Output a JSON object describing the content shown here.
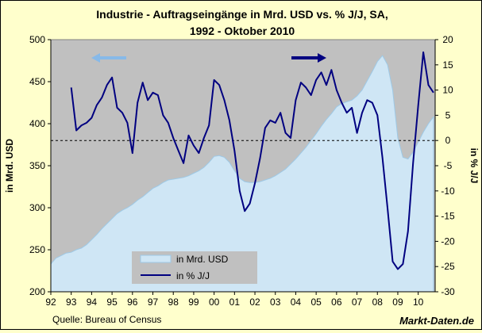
{
  "chart_data": {
    "type": "area",
    "title_line1": "Industrie - Auftragseingänge in Mrd. USD vs. % J/J, SA,",
    "title_line2": "1992 - Oktober 2010",
    "ylabel_left": "in Mrd. USD",
    "ylabel_right": "in % J/J",
    "x_tick_labels": [
      "92",
      "93",
      "94",
      "95",
      "96",
      "97",
      "98",
      "99",
      "00",
      "01",
      "02",
      "03",
      "04",
      "05",
      "06",
      "07",
      "08",
      "09",
      "10"
    ],
    "x_range": [
      1992.0,
      2010.83
    ],
    "ylim_left": [
      200,
      500
    ],
    "yticks_left": [
      200,
      250,
      300,
      350,
      400,
      450,
      500
    ],
    "ylim_right": [
      -30,
      20
    ],
    "yticks_right": [
      -30,
      -25,
      -20,
      -15,
      -10,
      -5,
      0,
      5,
      10,
      15,
      20
    ],
    "grid": false,
    "zero_line_right": 0,
    "legend_position": "bottom-left",
    "source": "Quelle: Bureau of Census",
    "brand": "Markt-Daten.de",
    "colors": {
      "background": "#ffffcc",
      "plot_background": "#c0c0c0",
      "area_fill": "#cfe6f5",
      "area_line": "#9ec9e6",
      "line": "#000080",
      "left_arrow": "#87b9e8",
      "right_arrow": "#000080"
    },
    "series": [
      {
        "name": "in Mrd. USD",
        "axis": "left",
        "kind": "area",
        "x": [
          1992.0,
          1992.25,
          1992.5,
          1992.75,
          1993.0,
          1993.25,
          1993.5,
          1993.75,
          1994.0,
          1994.25,
          1994.5,
          1994.75,
          1995.0,
          1995.25,
          1995.5,
          1995.75,
          1996.0,
          1996.25,
          1996.5,
          1996.75,
          1997.0,
          1997.25,
          1997.5,
          1997.75,
          1998.0,
          1998.25,
          1998.5,
          1998.75,
          1999.0,
          1999.25,
          1999.5,
          1999.75,
          2000.0,
          2000.25,
          2000.5,
          2000.75,
          2001.0,
          2001.25,
          2001.5,
          2001.75,
          2002.0,
          2002.25,
          2002.5,
          2002.75,
          2003.0,
          2003.25,
          2003.5,
          2003.75,
          2004.0,
          2004.25,
          2004.5,
          2004.75,
          2005.0,
          2005.25,
          2005.5,
          2005.75,
          2006.0,
          2006.25,
          2006.5,
          2006.75,
          2007.0,
          2007.25,
          2007.5,
          2007.75,
          2008.0,
          2008.25,
          2008.5,
          2008.75,
          2009.0,
          2009.25,
          2009.5,
          2009.75,
          2010.0,
          2010.25,
          2010.5,
          2010.75
        ],
        "values": [
          233,
          240,
          243,
          246,
          247,
          250,
          252,
          256,
          262,
          268,
          275,
          281,
          287,
          293,
          297,
          300,
          304,
          309,
          313,
          318,
          323,
          326,
          330,
          333,
          334,
          335,
          336,
          338,
          341,
          344,
          348,
          354,
          361,
          362,
          360,
          354,
          344,
          335,
          331,
          330,
          330,
          331,
          333,
          335,
          338,
          342,
          346,
          352,
          358,
          365,
          372,
          380,
          388,
          397,
          405,
          412,
          420,
          424,
          426,
          428,
          433,
          440,
          451,
          462,
          474,
          481,
          470,
          440,
          383,
          360,
          358,
          366,
          378,
          390,
          400,
          408
        ]
      },
      {
        "name": "in % J/J",
        "axis": "right",
        "kind": "line",
        "x": [
          1993.0,
          1993.25,
          1993.5,
          1993.75,
          1994.0,
          1994.25,
          1994.5,
          1994.75,
          1995.0,
          1995.25,
          1995.5,
          1995.75,
          1996.0,
          1996.25,
          1996.5,
          1996.75,
          1997.0,
          1997.25,
          1997.5,
          1997.75,
          1998.0,
          1998.25,
          1998.5,
          1998.75,
          1999.0,
          1999.25,
          1999.5,
          1999.75,
          2000.0,
          2000.25,
          2000.5,
          2000.75,
          2001.0,
          2001.25,
          2001.5,
          2001.75,
          2002.0,
          2002.25,
          2002.5,
          2002.75,
          2003.0,
          2003.25,
          2003.5,
          2003.75,
          2004.0,
          2004.25,
          2004.5,
          2004.75,
          2005.0,
          2005.25,
          2005.5,
          2005.75,
          2006.0,
          2006.25,
          2006.5,
          2006.75,
          2007.0,
          2007.25,
          2007.5,
          2007.75,
          2008.0,
          2008.25,
          2008.5,
          2008.75,
          2009.0,
          2009.25,
          2009.5,
          2009.75,
          2010.0,
          2010.25,
          2010.5,
          2010.75
        ],
        "values": [
          10.5,
          2.0,
          3.0,
          3.5,
          4.5,
          7.0,
          8.5,
          11.0,
          12.5,
          6.5,
          5.5,
          3.5,
          -2.5,
          7.5,
          11.5,
          8.0,
          9.5,
          9.0,
          5.0,
          3.5,
          0.5,
          -2.0,
          -4.5,
          1.0,
          -1.0,
          -2.5,
          0.5,
          3.0,
          12.0,
          11.0,
          8.0,
          4.0,
          -2.0,
          -10.0,
          -14.0,
          -12.5,
          -8.5,
          -3.5,
          2.5,
          4.0,
          3.5,
          5.5,
          1.5,
          0.5,
          8.0,
          11.5,
          10.5,
          9.0,
          12.0,
          13.5,
          11.0,
          14.0,
          10.0,
          7.5,
          5.5,
          6.5,
          1.5,
          5.5,
          8.0,
          7.5,
          5.0,
          -3.5,
          -13.5,
          -24.0,
          -25.5,
          -24.5,
          -18.0,
          -4.5,
          7.0,
          17.5,
          11.0,
          9.5
        ]
      }
    ],
    "arrows": [
      "left",
      "right"
    ]
  }
}
